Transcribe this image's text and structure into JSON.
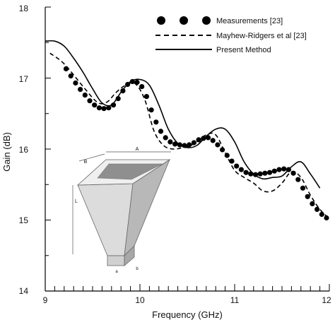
{
  "chart_data": {
    "type": "line",
    "title": "",
    "xlabel": "Frequency (GHz)",
    "ylabel": "Gain (dB)",
    "xlim": [
      9,
      12
    ],
    "ylim": [
      14,
      18
    ],
    "x_ticks": [
      "9",
      "10",
      "11",
      "12"
    ],
    "y_ticks": [
      "14",
      "15",
      "16",
      "17",
      "18"
    ],
    "grid": false,
    "legend_position": "top-right",
    "series": [
      {
        "name": "Measurements [23]",
        "style": "dots",
        "color": "#000000",
        "x": [
          9.22,
          9.27,
          9.32,
          9.37,
          9.42,
          9.47,
          9.52,
          9.57,
          9.62,
          9.67,
          9.72,
          9.77,
          9.82,
          9.87,
          9.92,
          9.97,
          10.02,
          10.07,
          10.12,
          10.17,
          10.22,
          10.27,
          10.32,
          10.37,
          10.42,
          10.47,
          10.52,
          10.57,
          10.62,
          10.67,
          10.72,
          10.77,
          10.82,
          10.87,
          10.92,
          10.97,
          11.02,
          11.07,
          11.12,
          11.17,
          11.22,
          11.27,
          11.32,
          11.37,
          11.42,
          11.47,
          11.52,
          11.57,
          11.62,
          11.67,
          11.72,
          11.77,
          11.82,
          11.87,
          11.92,
          11.97
        ],
        "y": [
          17.13,
          17.03,
          16.93,
          16.84,
          16.76,
          16.68,
          16.62,
          16.58,
          16.57,
          16.58,
          16.62,
          16.71,
          16.82,
          16.91,
          16.95,
          16.94,
          16.88,
          16.74,
          16.55,
          16.38,
          16.25,
          16.16,
          16.1,
          16.07,
          16.06,
          16.05,
          16.06,
          16.09,
          16.13,
          16.15,
          16.16,
          16.12,
          16.06,
          15.99,
          15.91,
          15.83,
          15.76,
          15.71,
          15.67,
          15.65,
          15.64,
          15.65,
          15.66,
          15.67,
          15.69,
          15.71,
          15.72,
          15.71,
          15.66,
          15.57,
          15.45,
          15.33,
          15.23,
          15.15,
          15.08,
          15.03
        ]
      },
      {
        "name": "Mayhew-Ridgers et al [23]",
        "style": "dashed",
        "color": "#000000",
        "x": [
          9.05,
          9.2,
          9.4,
          9.55,
          9.65,
          9.75,
          9.85,
          9.95,
          10.05,
          10.15,
          10.25,
          10.35,
          10.45,
          10.55,
          10.7,
          10.8,
          10.9,
          11.0,
          11.1,
          11.2,
          11.3,
          11.4,
          11.5,
          11.6,
          11.7,
          11.8,
          11.9,
          12.0
        ],
        "y": [
          17.35,
          17.2,
          16.88,
          16.66,
          16.66,
          16.8,
          16.9,
          16.92,
          16.7,
          16.25,
          16.05,
          16.0,
          16.02,
          16.06,
          16.2,
          16.2,
          15.95,
          15.7,
          15.6,
          15.52,
          15.41,
          15.41,
          15.52,
          15.68,
          15.6,
          15.35,
          15.15,
          15.02
        ]
      },
      {
        "name": "Present Method",
        "style": "solid",
        "color": "#000000",
        "x": [
          9.0,
          9.1,
          9.2,
          9.3,
          9.4,
          9.5,
          9.6,
          9.7,
          9.8,
          9.9,
          10.0,
          10.1,
          10.2,
          10.3,
          10.4,
          10.5,
          10.6,
          10.7,
          10.8,
          10.9,
          11.0,
          11.1,
          11.2,
          11.3,
          11.4,
          11.5,
          11.6,
          11.7,
          11.8,
          11.9
        ],
        "y": [
          17.52,
          17.52,
          17.45,
          17.28,
          17.08,
          16.85,
          16.65,
          16.62,
          16.8,
          16.95,
          16.98,
          16.9,
          16.62,
          16.28,
          16.08,
          16.02,
          16.05,
          16.18,
          16.28,
          16.28,
          16.1,
          15.82,
          15.65,
          15.58,
          15.6,
          15.62,
          15.75,
          15.82,
          15.65,
          15.45
        ]
      }
    ],
    "inset": {
      "description_icon": "horn-antenna-diagram",
      "dimension_labels": [
        "A",
        "B",
        "L",
        "a",
        "b"
      ]
    }
  }
}
